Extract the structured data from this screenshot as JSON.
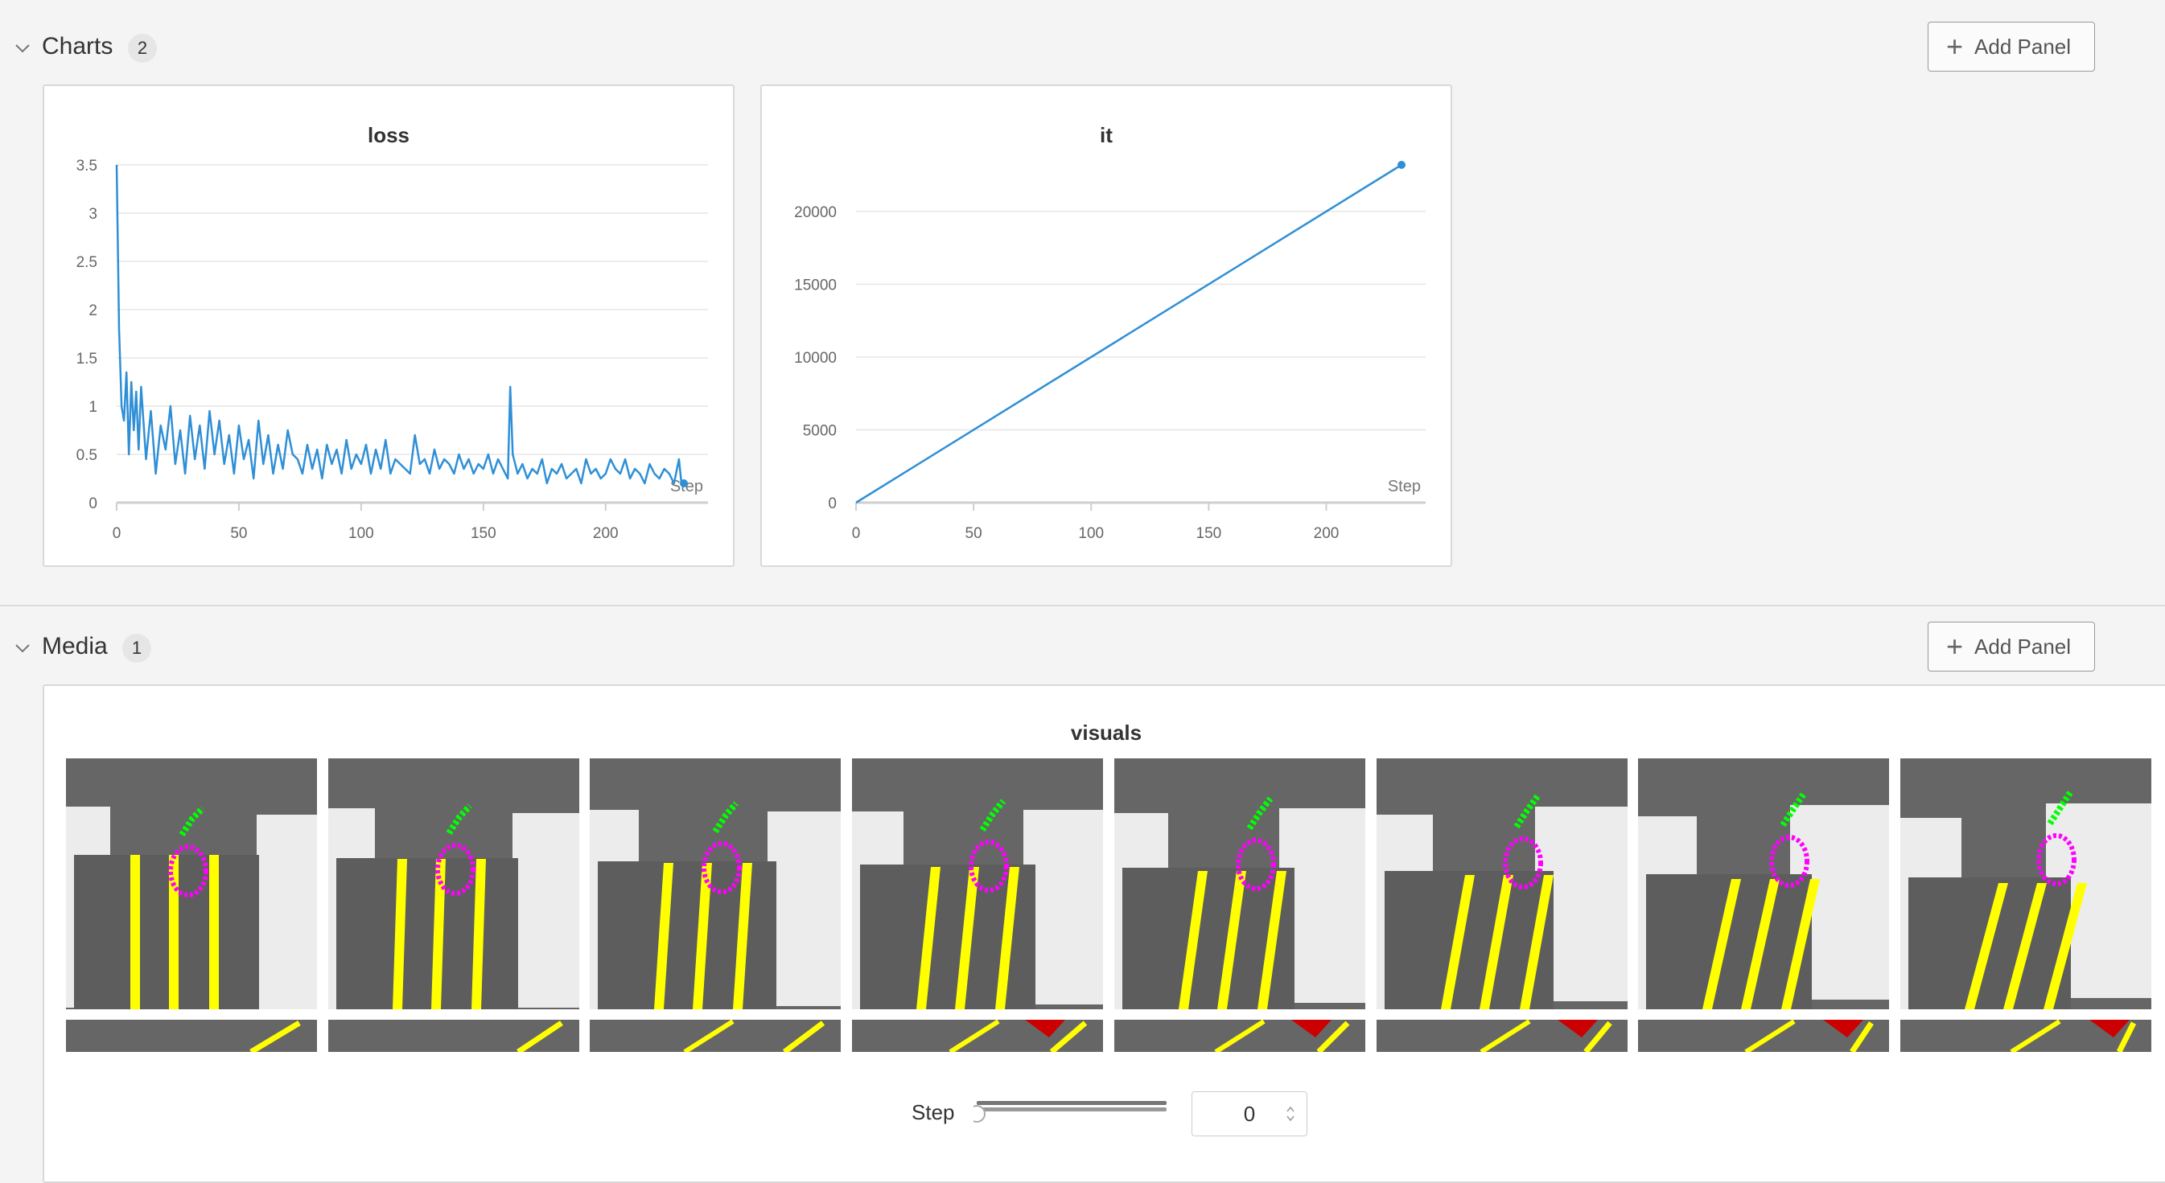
{
  "sections": {
    "charts": {
      "title": "Charts",
      "count": "2",
      "add_label": "Add Panel"
    },
    "media": {
      "title": "Media",
      "count": "1",
      "add_label": "Add Panel"
    }
  },
  "icons": {
    "collapse": "chevron-down-icon",
    "add": "plus-icon"
  },
  "colors": {
    "line": "#2f8fd6",
    "grid": "#e6e6e6",
    "axis": "#cccccc"
  },
  "chart_data": [
    {
      "type": "line",
      "title": "loss",
      "xlabel": "Step",
      "x_ticks": [
        "0",
        "50",
        "100",
        "150",
        "200"
      ],
      "y_ticks": [
        "0",
        "0.5",
        "1",
        "1.5",
        "2",
        "2.5",
        "3",
        "3.5"
      ],
      "xlim": [
        0,
        232
      ],
      "ylim": [
        0,
        3.5
      ],
      "series": [
        {
          "x": [
            0,
            1,
            2,
            3,
            4,
            5,
            6,
            7,
            8,
            9,
            10,
            12,
            14,
            16,
            18,
            20,
            22,
            24,
            26,
            28,
            30,
            32,
            34,
            36,
            38,
            40,
            42,
            44,
            46,
            48,
            50,
            52,
            54,
            56,
            58,
            60,
            62,
            64,
            66,
            68,
            70,
            72,
            74,
            76,
            78,
            80,
            82,
            84,
            86,
            88,
            90,
            92,
            94,
            96,
            98,
            100,
            102,
            104,
            106,
            108,
            110,
            112,
            114,
            116,
            118,
            120,
            122,
            124,
            126,
            128,
            130,
            132,
            134,
            136,
            138,
            140,
            142,
            144,
            146,
            148,
            150,
            152,
            154,
            156,
            158,
            160,
            161,
            162,
            164,
            166,
            168,
            170,
            172,
            174,
            176,
            178,
            180,
            182,
            184,
            186,
            188,
            190,
            192,
            194,
            196,
            198,
            200,
            202,
            204,
            206,
            208,
            210,
            212,
            214,
            216,
            218,
            220,
            222,
            224,
            226,
            228,
            230,
            231,
            232
          ],
          "y": [
            3.5,
            1.8,
            1.0,
            0.85,
            1.35,
            0.5,
            1.25,
            0.75,
            1.15,
            0.55,
            1.2,
            0.45,
            0.95,
            0.3,
            0.8,
            0.55,
            1.0,
            0.4,
            0.75,
            0.3,
            0.9,
            0.45,
            0.8,
            0.35,
            0.95,
            0.5,
            0.85,
            0.4,
            0.7,
            0.3,
            0.8,
            0.45,
            0.65,
            0.25,
            0.85,
            0.4,
            0.7,
            0.3,
            0.6,
            0.35,
            0.75,
            0.5,
            0.45,
            0.3,
            0.6,
            0.35,
            0.55,
            0.25,
            0.6,
            0.4,
            0.55,
            0.3,
            0.65,
            0.35,
            0.5,
            0.4,
            0.6,
            0.3,
            0.55,
            0.35,
            0.65,
            0.3,
            0.45,
            0.4,
            0.35,
            0.3,
            0.7,
            0.4,
            0.45,
            0.3,
            0.55,
            0.35,
            0.45,
            0.4,
            0.3,
            0.5,
            0.35,
            0.45,
            0.3,
            0.4,
            0.35,
            0.5,
            0.3,
            0.45,
            0.35,
            0.25,
            1.2,
            0.5,
            0.3,
            0.4,
            0.25,
            0.35,
            0.3,
            0.45,
            0.2,
            0.35,
            0.3,
            0.4,
            0.25,
            0.3,
            0.35,
            0.2,
            0.45,
            0.3,
            0.35,
            0.25,
            0.3,
            0.45,
            0.35,
            0.3,
            0.45,
            0.25,
            0.35,
            0.3,
            0.2,
            0.4,
            0.3,
            0.25,
            0.35,
            0.3,
            0.2,
            0.45,
            0.2,
            0.2
          ]
        }
      ]
    },
    {
      "type": "line",
      "title": "it",
      "xlabel": "Step",
      "x_ticks": [
        "0",
        "50",
        "100",
        "150",
        "200"
      ],
      "y_ticks": [
        "0",
        "5000",
        "10000",
        "15000",
        "20000"
      ],
      "xlim": [
        0,
        232
      ],
      "ylim": [
        0,
        23200
      ],
      "series": [
        {
          "x": [
            0,
            232
          ],
          "y": [
            0,
            23200
          ]
        }
      ]
    }
  ],
  "media": {
    "panel_title": "visuals",
    "step_label": "Step",
    "step_value": "0"
  }
}
